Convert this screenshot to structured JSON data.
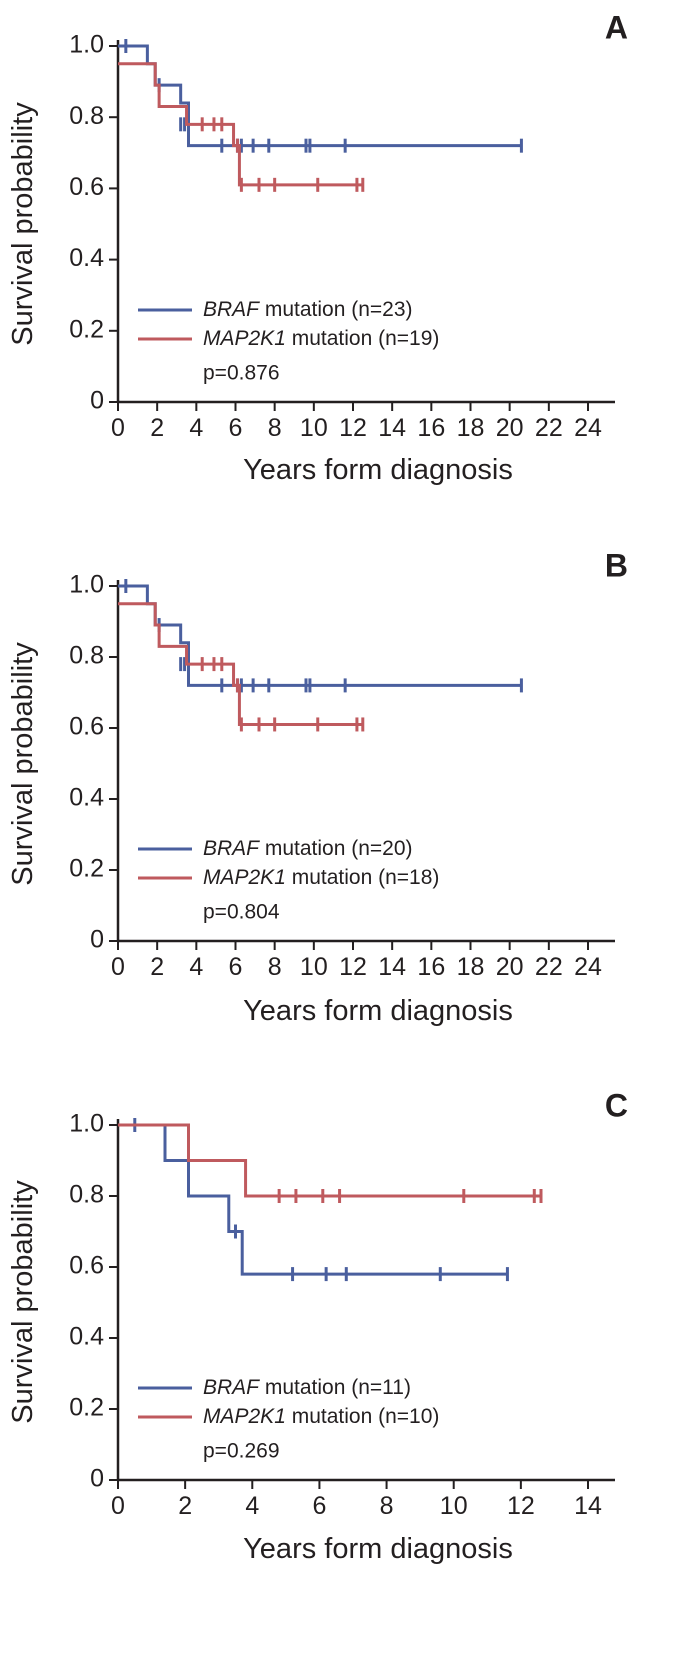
{
  "colors": {
    "braf": "#4a5f9e",
    "map2k1": "#bf5a5e",
    "axis": "#231f20"
  },
  "chart_data": [
    {
      "type": "line",
      "panel_label": "A",
      "xlabel": "Years form diagnosis",
      "ylabel": "Survival probability",
      "xlim": [
        0,
        24
      ],
      "ylim": [
        0,
        1.0
      ],
      "xticks": [
        "0",
        "2",
        "4",
        "6",
        "8",
        "10",
        "12",
        "14",
        "16",
        "18",
        "20",
        "22",
        "24"
      ],
      "yticks": [
        "0",
        "0.2",
        "0.4",
        "0.6",
        "0.8",
        "1.0"
      ],
      "pvalue": "p=0.876",
      "series": [
        {
          "key": "braf",
          "name_italic": "BRAF",
          "name_rest": " mutation (n=23)",
          "steps": [
            [
              0,
              1.0
            ],
            [
              1.5,
              0.95
            ],
            [
              1.9,
              0.89
            ],
            [
              3.2,
              0.84
            ],
            [
              3.6,
              0.72
            ],
            [
              20.6,
              0.72
            ]
          ],
          "censors": [
            [
              0.4,
              1.0
            ],
            [
              2.1,
              0.89
            ],
            [
              3.2,
              0.78
            ],
            [
              3.4,
              0.78
            ],
            [
              5.3,
              0.72
            ],
            [
              6.1,
              0.72
            ],
            [
              6.3,
              0.72
            ],
            [
              6.9,
              0.72
            ],
            [
              7.7,
              0.72
            ],
            [
              9.6,
              0.72
            ],
            [
              9.8,
              0.72
            ],
            [
              11.6,
              0.72
            ],
            [
              20.6,
              0.72
            ]
          ]
        },
        {
          "key": "map2k1",
          "name_italic": "MAP2K1",
          "name_rest": " mutation (n=19)",
          "steps": [
            [
              0,
              0.95
            ],
            [
              1.9,
              0.89
            ],
            [
              2.1,
              0.83
            ],
            [
              3.5,
              0.78
            ],
            [
              5.9,
              0.72
            ],
            [
              6.2,
              0.61
            ],
            [
              12.5,
              0.61
            ]
          ],
          "censors": [
            [
              4.3,
              0.78
            ],
            [
              4.9,
              0.78
            ],
            [
              5.3,
              0.78
            ],
            [
              6.1,
              0.72
            ],
            [
              6.3,
              0.61
            ],
            [
              7.2,
              0.61
            ],
            [
              8.0,
              0.61
            ],
            [
              10.2,
              0.61
            ],
            [
              12.2,
              0.61
            ],
            [
              12.5,
              0.61
            ]
          ]
        }
      ]
    },
    {
      "type": "line",
      "panel_label": "B",
      "xlabel": "Years form diagnosis",
      "ylabel": "Survival probability",
      "xlim": [
        0,
        24
      ],
      "ylim": [
        0,
        1.0
      ],
      "xticks": [
        "0",
        "2",
        "4",
        "6",
        "8",
        "10",
        "12",
        "14",
        "16",
        "18",
        "20",
        "22",
        "24"
      ],
      "yticks": [
        "0",
        "0.2",
        "0.4",
        "0.6",
        "0.8",
        "1.0"
      ],
      "pvalue": "p=0.804",
      "series": [
        {
          "key": "braf",
          "name_italic": "BRAF",
          "name_rest": " mutation (n=20)",
          "steps": [
            [
              0,
              1.0
            ],
            [
              1.5,
              0.95
            ],
            [
              1.9,
              0.89
            ],
            [
              3.2,
              0.84
            ],
            [
              3.6,
              0.72
            ],
            [
              20.6,
              0.72
            ]
          ],
          "censors": [
            [
              0.4,
              1.0
            ],
            [
              2.1,
              0.89
            ],
            [
              3.2,
              0.78
            ],
            [
              3.4,
              0.78
            ],
            [
              5.3,
              0.72
            ],
            [
              6.1,
              0.72
            ],
            [
              6.3,
              0.72
            ],
            [
              6.9,
              0.72
            ],
            [
              7.7,
              0.72
            ],
            [
              9.6,
              0.72
            ],
            [
              9.8,
              0.72
            ],
            [
              11.6,
              0.72
            ],
            [
              20.6,
              0.72
            ]
          ]
        },
        {
          "key": "map2k1",
          "name_italic": "MAP2K1",
          "name_rest": " mutation (n=18)",
          "steps": [
            [
              0,
              0.95
            ],
            [
              1.9,
              0.89
            ],
            [
              2.1,
              0.83
            ],
            [
              3.5,
              0.78
            ],
            [
              5.9,
              0.72
            ],
            [
              6.2,
              0.61
            ],
            [
              12.5,
              0.61
            ]
          ],
          "censors": [
            [
              4.3,
              0.78
            ],
            [
              4.9,
              0.78
            ],
            [
              5.3,
              0.78
            ],
            [
              6.1,
              0.72
            ],
            [
              6.3,
              0.61
            ],
            [
              7.2,
              0.61
            ],
            [
              8.0,
              0.61
            ],
            [
              10.2,
              0.61
            ],
            [
              12.2,
              0.61
            ],
            [
              12.5,
              0.61
            ]
          ]
        }
      ]
    },
    {
      "type": "line",
      "panel_label": "C",
      "xlabel": "Years form diagnosis",
      "ylabel": "Survival probability",
      "xlim": [
        0,
        14
      ],
      "ylim": [
        0,
        1.0
      ],
      "xticks": [
        "0",
        "2",
        "4",
        "6",
        "8",
        "10",
        "12",
        "14"
      ],
      "yticks": [
        "0",
        "0.2",
        "0.4",
        "0.6",
        "0.8",
        "1.0"
      ],
      "pvalue": "p=0.269",
      "series": [
        {
          "key": "braf",
          "name_italic": "BRAF",
          "name_rest": " mutation (n=11)",
          "steps": [
            [
              0,
              1.0
            ],
            [
              1.4,
              0.9
            ],
            [
              2.1,
              0.8
            ],
            [
              3.3,
              0.7
            ],
            [
              3.7,
              0.58
            ],
            [
              11.6,
              0.58
            ]
          ],
          "censors": [
            [
              0.5,
              1.0
            ],
            [
              3.5,
              0.7
            ],
            [
              5.2,
              0.58
            ],
            [
              6.2,
              0.58
            ],
            [
              6.8,
              0.58
            ],
            [
              9.6,
              0.58
            ],
            [
              11.6,
              0.58
            ]
          ]
        },
        {
          "key": "map2k1",
          "name_italic": "MAP2K1",
          "name_rest": " mutation (n=10)",
          "steps": [
            [
              0,
              1.0
            ],
            [
              2.1,
              0.9
            ],
            [
              3.8,
              0.8
            ],
            [
              12.6,
              0.8
            ]
          ],
          "censors": [
            [
              4.8,
              0.8
            ],
            [
              5.3,
              0.8
            ],
            [
              6.1,
              0.8
            ],
            [
              6.6,
              0.8
            ],
            [
              10.3,
              0.8
            ],
            [
              12.4,
              0.8
            ],
            [
              12.6,
              0.8
            ]
          ]
        }
      ]
    }
  ]
}
